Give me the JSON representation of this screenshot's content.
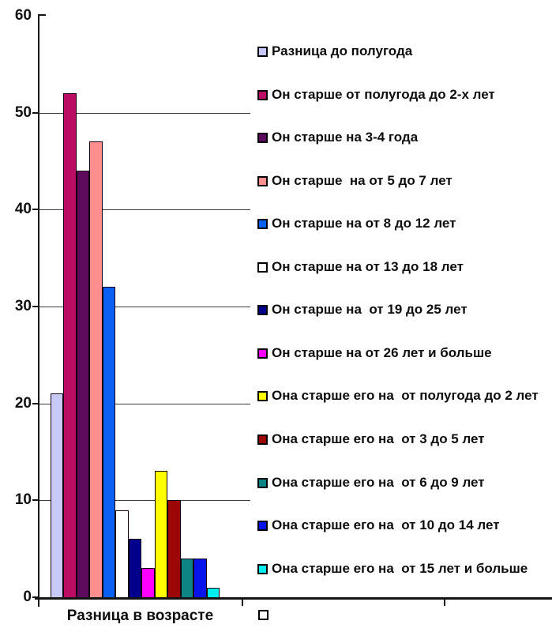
{
  "chart_data": {
    "type": "bar",
    "title": "",
    "x_category_label": "Разница в возрасте",
    "empty_category_marker": "□",
    "ylabel": "",
    "xlabel": "",
    "ylim": [
      0,
      60
    ],
    "y_ticks": [
      0,
      10,
      20,
      30,
      40,
      50,
      60
    ],
    "grid": "horizontal gridlines at 10,20,30,40,50",
    "legend_position": "right",
    "axis_color": "#141414",
    "background_color": "#ffffff",
    "series": [
      {
        "name": "Разница до полугода",
        "value": 21,
        "color": "#c9c9f8"
      },
      {
        "name": "Он старше от полугода до 2-х лет",
        "value": 52,
        "color": "#bb0d63"
      },
      {
        "name": "Он старше на 3-4 года",
        "value": 44,
        "color": "#5e0b5e"
      },
      {
        "name": "Он старше  на от 5 до 7 лет",
        "value": 47,
        "color": "#ff8f8f"
      },
      {
        "name": "Он старше на от 8 до 12 лет",
        "value": 32,
        "color": "#0a60f2"
      },
      {
        "name": "Он старше на от 13 до 18 лет",
        "value": 9,
        "color": "#ffffff"
      },
      {
        "name": "Он старше на  от 19 до 25 лет",
        "value": 6,
        "color": "#00008c"
      },
      {
        "name": "Он старше на от 26 лет и больше",
        "value": 3,
        "color": "#ff00ff"
      },
      {
        "name": "Она старше его на  от полугода до 2 лет",
        "value": 13,
        "color": "#ffff00"
      },
      {
        "name": "Она старше его на  от 3 до 5 лет",
        "value": 10,
        "color": "#9c0606"
      },
      {
        "name": "Она старше его на  от 6 до 9 лет",
        "value": 4,
        "color": "#0e8585"
      },
      {
        "name": "Она старше его на  от 10 до 14 лет",
        "value": 4,
        "color": "#0713eb"
      },
      {
        "name": "Она старше его на  от 15 лет и больше",
        "value": 1,
        "color": "#00eeee"
      }
    ]
  }
}
